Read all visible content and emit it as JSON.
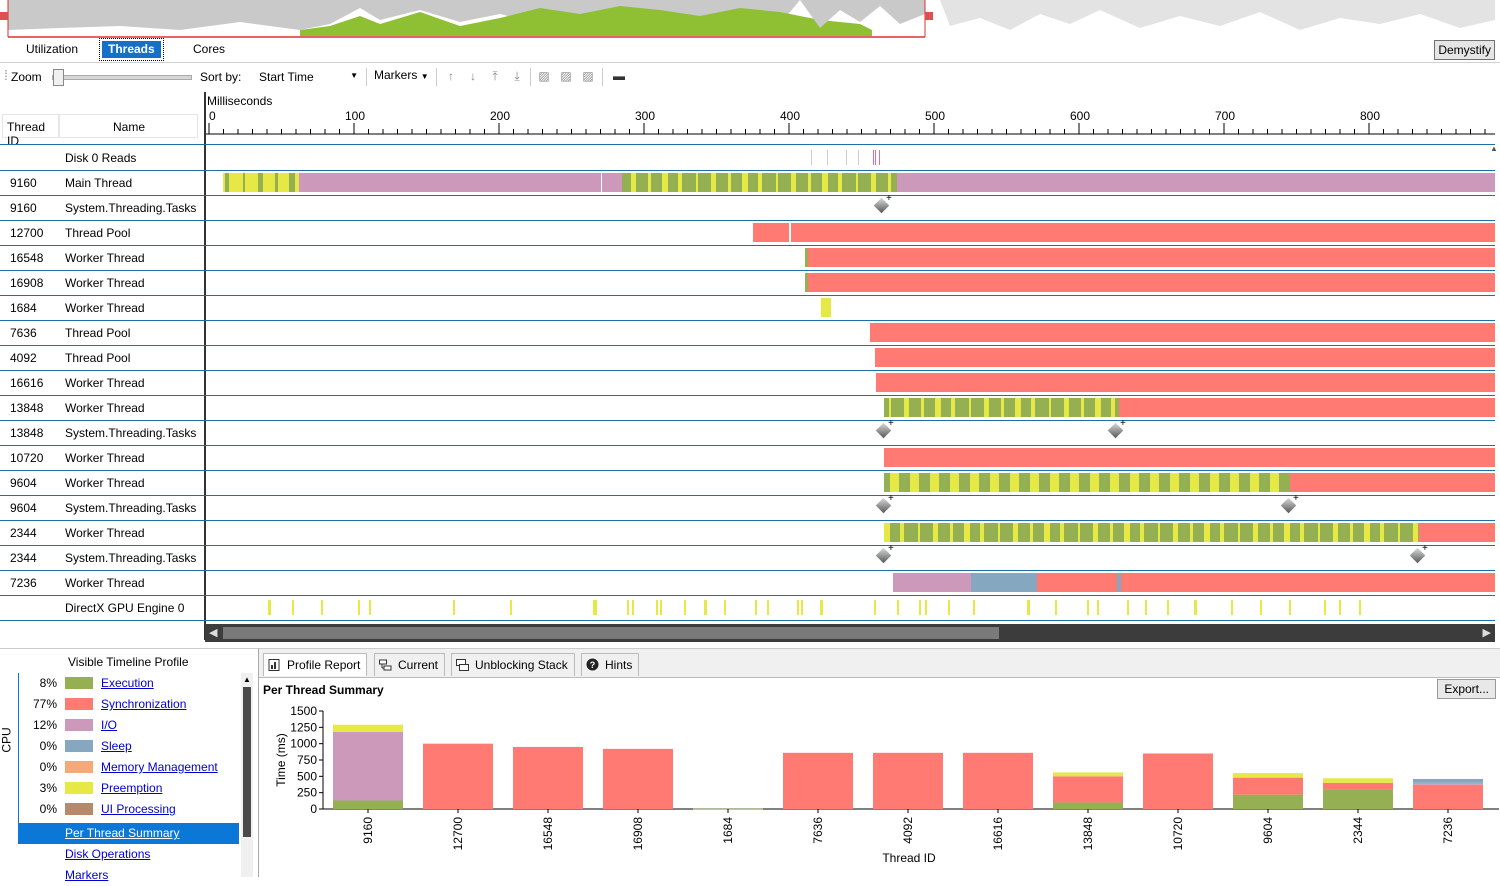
{
  "view_tabs": [
    {
      "label": "Utilization",
      "active": false
    },
    {
      "label": "Threads",
      "active": true
    },
    {
      "label": "Cores",
      "active": false
    }
  ],
  "demystify_label": "Demystify",
  "toolbar": {
    "zoom_label": "Zoom",
    "sort_by_label": "Sort by:",
    "sort_by_value": "Start Time",
    "markers_label": "Markers",
    "zoom_level": 0.0
  },
  "thread_header": {
    "col_id": "Thread ID",
    "col_name": "Name"
  },
  "timeline": {
    "unit_label": "Milliseconds",
    "ticks": [
      "0",
      "100",
      "200",
      "300",
      "400",
      "500",
      "600",
      "700",
      "800"
    ]
  },
  "colors": {
    "execution": "#94b053",
    "synchronization": "#ff7a73",
    "io": "#cc99bb",
    "sleep": "#85a7c0",
    "memory_management": "#f4a97a",
    "preemption": "#e5e845",
    "ui_processing": "#b7896a",
    "row_border": "#1f6fa6"
  },
  "rows": [
    {
      "id": "",
      "name": "Disk 0 Reads"
    },
    {
      "id": "9160",
      "name": "Main Thread"
    },
    {
      "id": "9160",
      "name": "System.Threading.Tasks"
    },
    {
      "id": "12700",
      "name": "Thread Pool"
    },
    {
      "id": "16548",
      "name": "Worker Thread"
    },
    {
      "id": "16908",
      "name": "Worker Thread"
    },
    {
      "id": "1684",
      "name": "Worker Thread"
    },
    {
      "id": "7636",
      "name": "Thread Pool"
    },
    {
      "id": "4092",
      "name": "Thread Pool"
    },
    {
      "id": "16616",
      "name": "Worker Thread"
    },
    {
      "id": "13848",
      "name": "Worker Thread"
    },
    {
      "id": "13848",
      "name": "System.Threading.Tasks"
    },
    {
      "id": "10720",
      "name": "Worker Thread"
    },
    {
      "id": "9604",
      "name": "Worker Thread"
    },
    {
      "id": "9604",
      "name": "System.Threading.Tasks"
    },
    {
      "id": "2344",
      "name": "Worker Thread"
    },
    {
      "id": "2344",
      "name": "System.Threading.Tasks"
    },
    {
      "id": "7236",
      "name": "Worker Thread"
    },
    {
      "id": "",
      "name": "DirectX GPU Engine 0"
    }
  ],
  "profile": {
    "title": "Visible Timeline Profile",
    "cpu_label": "CPU",
    "legend": [
      {
        "pct": "8%",
        "label": "Execution",
        "color": "#94b053"
      },
      {
        "pct": "77%",
        "label": "Synchronization",
        "color": "#ff7a73"
      },
      {
        "pct": "12%",
        "label": "I/O",
        "color": "#cc99bb"
      },
      {
        "pct": "0%",
        "label": "Sleep",
        "color": "#85a7c0"
      },
      {
        "pct": "0%",
        "label": "Memory Management",
        "color": "#f4a97a"
      },
      {
        "pct": "3%",
        "label": "Preemption",
        "color": "#e5e845"
      },
      {
        "pct": "0%",
        "label": "UI Processing",
        "color": "#b7896a"
      }
    ],
    "nav": [
      {
        "label": "Per Thread Summary",
        "selected": true
      },
      {
        "label": "Disk Operations",
        "selected": false
      },
      {
        "label": "Markers",
        "selected": false
      }
    ]
  },
  "report_tabs": [
    {
      "label": "Profile Report",
      "icon": "report-icon",
      "active": true
    },
    {
      "label": "Current",
      "icon": "current-stack-icon",
      "active": false
    },
    {
      "label": "Unblocking Stack",
      "icon": "unblocking-stack-icon",
      "active": false
    },
    {
      "label": "Hints",
      "icon": "help-icon",
      "active": false
    }
  ],
  "report": {
    "title": "Per Thread Summary",
    "export_label": "Export..."
  },
  "chart_data": {
    "type": "bar",
    "stacked": true,
    "title": "",
    "xlabel": "Thread ID",
    "ylabel": "Time (ms)",
    "ylim": [
      0,
      1500
    ],
    "yticks": [
      "0",
      "250",
      "500",
      "750",
      "1000",
      "1250",
      "1500"
    ],
    "categories": [
      "9160",
      "12700",
      "16548",
      "16908",
      "1684",
      "7636",
      "4092",
      "16616",
      "13848",
      "10720",
      "9604",
      "2344",
      "7236"
    ],
    "series": [
      {
        "key": "execution",
        "color": "#94b053",
        "values": [
          130,
          0,
          0,
          0,
          5,
          0,
          0,
          0,
          100,
          0,
          220,
          300,
          0
        ]
      },
      {
        "key": "synchronization",
        "color": "#ff7a73",
        "values": [
          0,
          1000,
          950,
          920,
          0,
          860,
          860,
          860,
          400,
          850,
          260,
          100,
          370
        ]
      },
      {
        "key": "io",
        "color": "#cc99bb",
        "values": [
          1050,
          0,
          0,
          0,
          0,
          0,
          0,
          0,
          0,
          0,
          0,
          0,
          30
        ]
      },
      {
        "key": "sleep",
        "color": "#85a7c0",
        "values": [
          0,
          0,
          0,
          0,
          0,
          0,
          0,
          0,
          0,
          0,
          0,
          0,
          60
        ]
      },
      {
        "key": "preemption",
        "color": "#e5e845",
        "values": [
          110,
          0,
          0,
          0,
          0,
          0,
          0,
          0,
          60,
          0,
          70,
          70,
          0
        ]
      }
    ]
  }
}
